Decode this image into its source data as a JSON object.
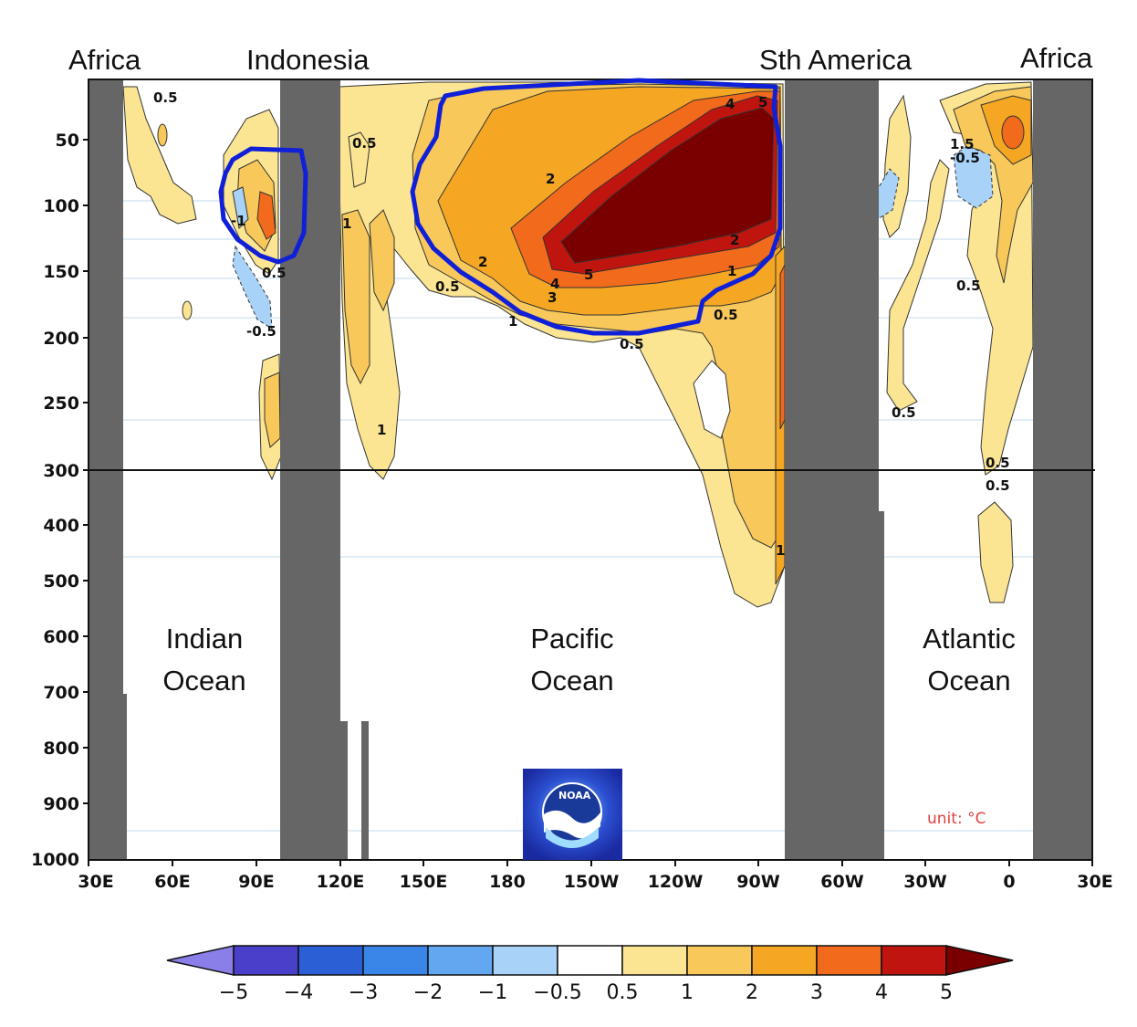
{
  "region_labels": {
    "africa_left": "Africa",
    "indonesia": "Indonesia",
    "south_america": "Sth America",
    "africa_right": "Africa"
  },
  "ocean_labels": {
    "indian_line1": "Indian",
    "indian_line2": "Ocean",
    "pacific_line1": "Pacific",
    "pacific_line2": "Ocean",
    "atlantic_line1": "Atlantic",
    "atlantic_line2": "Ocean"
  },
  "y_ticks": [
    "50",
    "100",
    "150",
    "200",
    "250",
    "300",
    "400",
    "500",
    "600",
    "700",
    "800",
    "900",
    "1000"
  ],
  "x_ticks": [
    "30E",
    "60E",
    "90E",
    "120E",
    "150E",
    "180",
    "150W",
    "120W",
    "90W",
    "60W",
    "30W",
    "0",
    "30E"
  ],
  "contour_labels": {
    "c1": "0.5",
    "c2": "0.5",
    "c3": "-1",
    "c4": "0.5",
    "c5": "-0.5",
    "c6": "1",
    "c7": "1",
    "c8": "0.5",
    "c9": "2",
    "c10": "2",
    "c11": "4",
    "c12": "5",
    "c13": "4",
    "c14": "3",
    "c15": "5",
    "c16": "2",
    "c17": "1",
    "c18": "1",
    "c19": "0.5",
    "c20": "0.5",
    "c21": "1",
    "c22": "1.5",
    "c23": "-0.5",
    "c24": "0.5",
    "c25": "0.5",
    "c26": "0.5",
    "c27": "0.5"
  },
  "colorbar": {
    "labels": [
      "−5",
      "−4",
      "−3",
      "−2",
      "−1",
      "−0.5",
      "0.5",
      "1",
      "2",
      "3",
      "4",
      "5"
    ],
    "colors": [
      "#8a7fe8",
      "#4a3fc9",
      "#2a5fd6",
      "#3a86e8",
      "#62a8f0",
      "#a8d2f8",
      "#ffffff",
      "#fbe592",
      "#f8c85a",
      "#f5a623",
      "#f26a1b",
      "#c0140f",
      "#7a0000"
    ]
  },
  "unit_label": "unit: °C",
  "logo_text": "NOAA",
  "colors": {
    "land_mask": "#666666",
    "highlight_outline": "#1020d8"
  }
}
